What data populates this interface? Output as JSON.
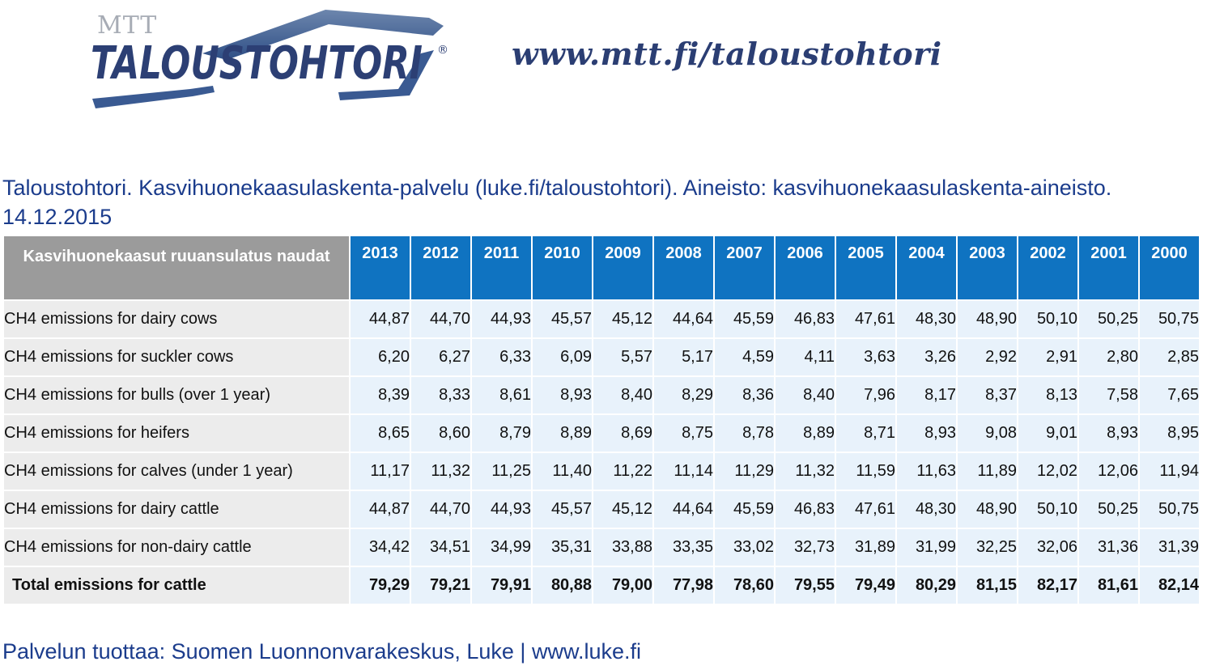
{
  "header": {
    "logo_small": "MTT",
    "logo_main": "TALOUSTOHTORI",
    "logo_registered": "®",
    "site_url": "www.mtt.fi/taloustohtori"
  },
  "caption": "Taloustohtori. Kasvihuonekaasulaskenta-palvelu (luke.fi/taloustohtori). Aineisto: kasvihuonekaasulaskenta-aineisto. 14.12.2015",
  "table": {
    "corner_header": "Kasvihuonekaasut ruuansulatus naudat",
    "years": [
      "2013",
      "2012",
      "2011",
      "2010",
      "2009",
      "2008",
      "2007",
      "2006",
      "2005",
      "2004",
      "2003",
      "2002",
      "2001",
      "2000"
    ],
    "rows": [
      {
        "label": "CH4 emissions for dairy cows",
        "values": [
          "44,87",
          "44,70",
          "44,93",
          "45,57",
          "45,12",
          "44,64",
          "45,59",
          "46,83",
          "47,61",
          "48,30",
          "48,90",
          "50,10",
          "50,25",
          "50,75"
        ]
      },
      {
        "label": "CH4 emissions for suckler cows",
        "values": [
          "6,20",
          "6,27",
          "6,33",
          "6,09",
          "5,57",
          "5,17",
          "4,59",
          "4,11",
          "3,63",
          "3,26",
          "2,92",
          "2,91",
          "2,80",
          "2,85"
        ]
      },
      {
        "label": "CH4 emissions for bulls (over 1 year)",
        "values": [
          "8,39",
          "8,33",
          "8,61",
          "8,93",
          "8,40",
          "8,29",
          "8,36",
          "8,40",
          "7,96",
          "8,17",
          "8,37",
          "8,13",
          "7,58",
          "7,65"
        ]
      },
      {
        "label": "CH4 emissions for heifers",
        "values": [
          "8,65",
          "8,60",
          "8,79",
          "8,89",
          "8,69",
          "8,75",
          "8,78",
          "8,89",
          "8,71",
          "8,93",
          "9,08",
          "9,01",
          "8,93",
          "8,95"
        ]
      },
      {
        "label": "CH4 emissions for calves (under 1 year)",
        "values": [
          "11,17",
          "11,32",
          "11,25",
          "11,40",
          "11,22",
          "11,14",
          "11,29",
          "11,32",
          "11,59",
          "11,63",
          "11,89",
          "12,02",
          "12,06",
          "11,94"
        ]
      },
      {
        "label": "CH4 emissions for dairy cattle",
        "values": [
          "44,87",
          "44,70",
          "44,93",
          "45,57",
          "45,12",
          "44,64",
          "45,59",
          "46,83",
          "47,61",
          "48,30",
          "48,90",
          "50,10",
          "50,25",
          "50,75"
        ]
      },
      {
        "label": "CH4 emissions for non-dairy cattle",
        "values": [
          "34,42",
          "34,51",
          "34,99",
          "35,31",
          "33,88",
          "33,35",
          "33,02",
          "32,73",
          "31,89",
          "31,99",
          "32,25",
          "32,06",
          "31,36",
          "31,39"
        ]
      }
    ],
    "total": {
      "label": "Total emissions for cattle",
      "values": [
        "79,29",
        "79,21",
        "79,91",
        "80,88",
        "79,00",
        "77,98",
        "78,60",
        "79,55",
        "79,49",
        "80,29",
        "81,15",
        "82,17",
        "81,61",
        "82,14"
      ]
    }
  },
  "footer": "Palvelun tuottaa: Suomen Luonnonvarakeskus, Luke | www.luke.fi"
}
